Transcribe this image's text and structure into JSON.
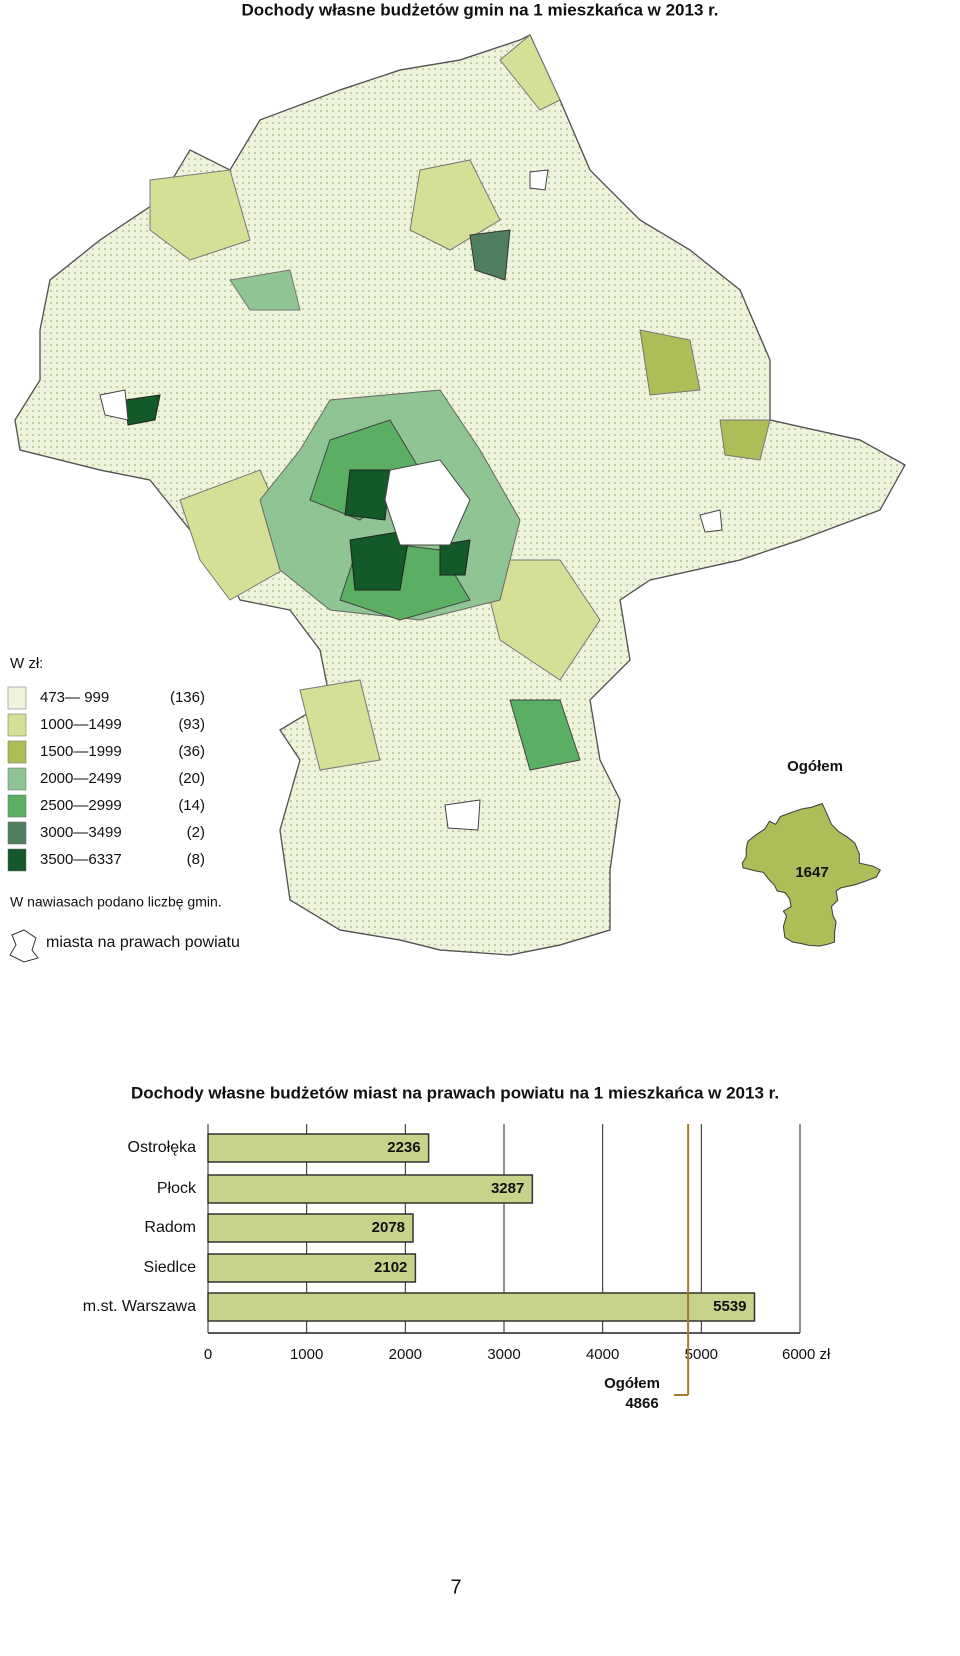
{
  "page_number": "7",
  "map": {
    "title": "Dochody własne budżetów gmin na 1 mieszkańca w 2013 r.",
    "legend": {
      "title": "W zł:",
      "items": [
        {
          "range": "473— 999",
          "count": "(136)",
          "color": "#eef3dc"
        },
        {
          "range": "1000—1499",
          "count": "(93)",
          "color": "#d6df96"
        },
        {
          "range": "1500—1999",
          "count": "(36)",
          "color": "#aebd57"
        },
        {
          "range": "2000—2499",
          "count": "(20)",
          "color": "#8fc495"
        },
        {
          "range": "2500—2999",
          "count": "(14)",
          "color": "#5aaf62"
        },
        {
          "range": "3000—3499",
          "count": "(2)",
          "color": "#4f7f5e"
        },
        {
          "range": "3500—6337",
          "count": "(8)",
          "color": "#13592a"
        }
      ]
    },
    "note": "W nawiasach podano liczbę gmin.",
    "city_legend": "miasta na prawach powiatu",
    "total": {
      "label": "Ogółem",
      "value": 1647,
      "color": "#aebd57"
    }
  },
  "chart_data": {
    "type": "bar",
    "orientation": "horizontal",
    "title": "Dochody własne budżetów miast na prawach powiatu na 1 mieszkańca w 2013 r.",
    "categories": [
      "Ostrołęka",
      "Płock",
      "Radom",
      "Siedlce",
      "m.st. Warszawa"
    ],
    "values": [
      2236,
      3287,
      2078,
      2102,
      5539
    ],
    "color": "#c8d28a",
    "xlim": [
      0,
      6000
    ],
    "xticks": [
      0,
      1000,
      2000,
      3000,
      4000,
      5000,
      {
        "value": 6000,
        "label": "6000 zł"
      }
    ],
    "grid": true,
    "reference_line": {
      "label": "Ogółem",
      "value": 4866,
      "color": "#a8782e"
    }
  }
}
